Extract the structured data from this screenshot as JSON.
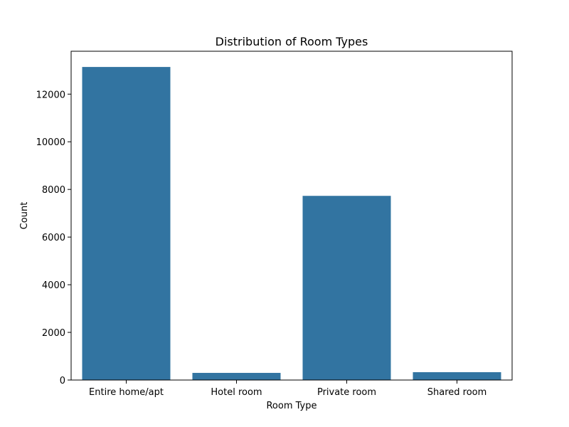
{
  "chart_data": {
    "type": "bar",
    "title": "Distribution of Room Types",
    "xlabel": "Room Type",
    "ylabel": "Count",
    "categories": [
      "Entire home/apt",
      "Hotel room",
      "Private room",
      "Shared room"
    ],
    "values": [
      13140,
      300,
      7730,
      330
    ],
    "ylim": [
      0,
      13800
    ],
    "yticks": [
      0,
      2000,
      4000,
      6000,
      8000,
      10000,
      12000
    ],
    "grid": false,
    "bar_color": "#3274a1"
  }
}
